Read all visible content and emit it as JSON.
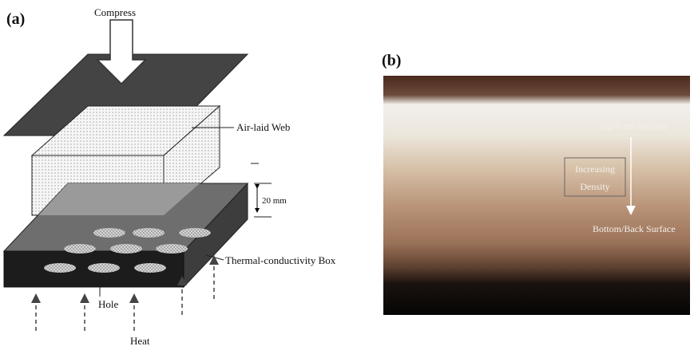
{
  "panel_a": {
    "label": "(a)",
    "compress": "Compress",
    "web": "Air-laid Web",
    "thickness": "20 mm",
    "box": "Thermal-conductivity Box",
    "hole": "Hole",
    "heat": "Heat"
  },
  "panel_b": {
    "label": "(b)",
    "top": "Top/Front Surface",
    "gradient": [
      "Increasing",
      "Density"
    ],
    "bottom": "Bottom/Back Surface"
  }
}
